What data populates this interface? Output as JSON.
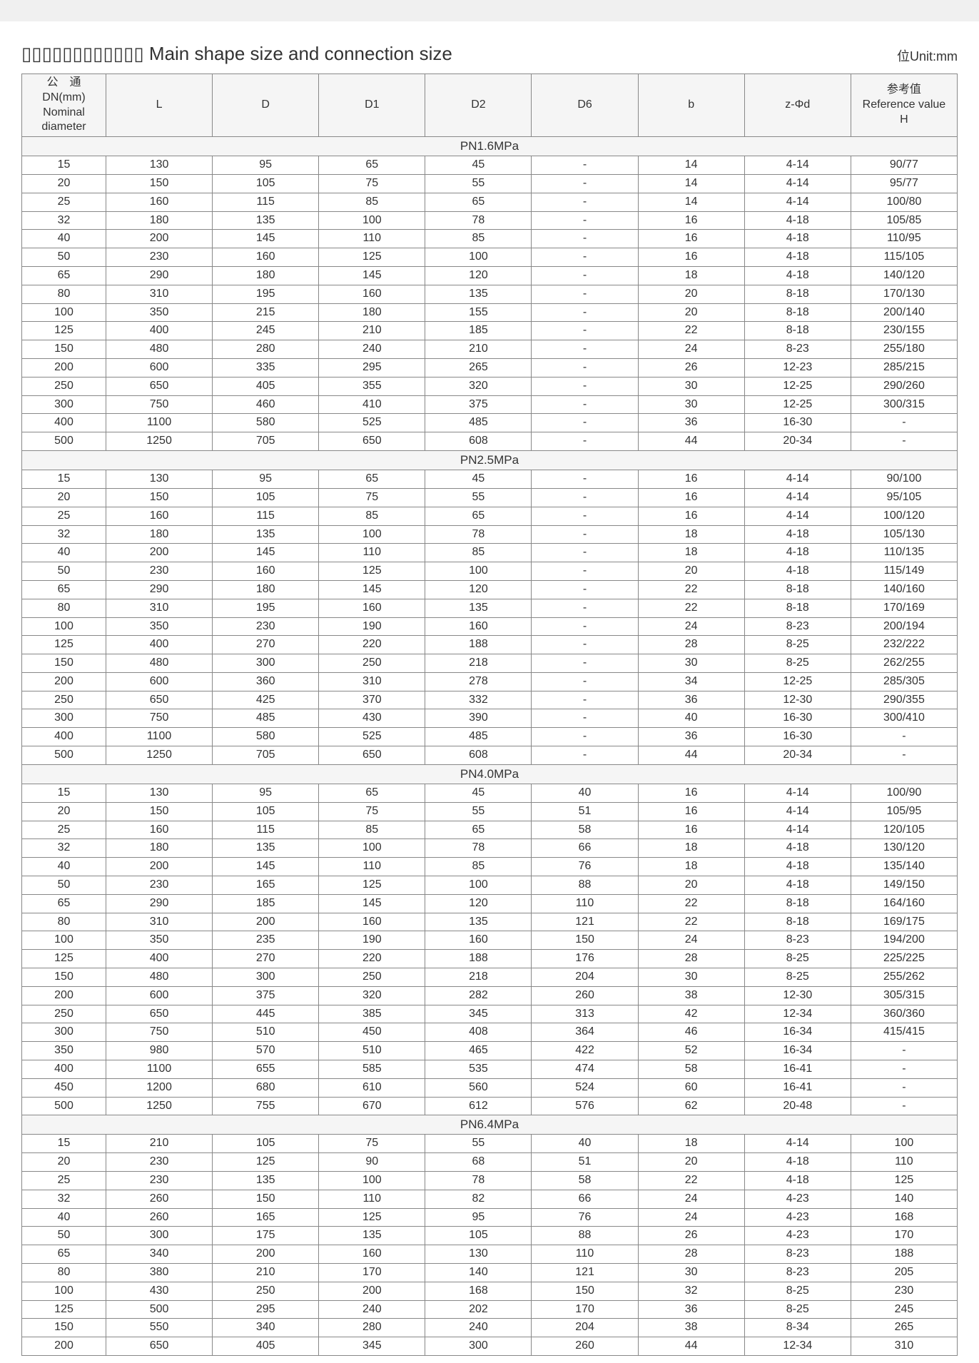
{
  "title": "▯▯▯▯▯▯▯▯▯▯▯▯ Main shape size and connection size",
  "unit_label": "位Unit:mm",
  "columns": [
    "公　通\nDN(mm)\nNominal diameter",
    "L",
    "D",
    "D1",
    "D2",
    "D6",
    "b",
    "z-Φd",
    "参考值\nReference value\nH"
  ],
  "sections": [
    {
      "label": "PN1.6MPa",
      "rows": [
        [
          "15",
          "130",
          "95",
          "65",
          "45",
          "-",
          "14",
          "4-14",
          "90/77"
        ],
        [
          "20",
          "150",
          "105",
          "75",
          "55",
          "-",
          "14",
          "4-14",
          "95/77"
        ],
        [
          "25",
          "160",
          "115",
          "85",
          "65",
          "-",
          "14",
          "4-14",
          "100/80"
        ],
        [
          "32",
          "180",
          "135",
          "100",
          "78",
          "-",
          "16",
          "4-18",
          "105/85"
        ],
        [
          "40",
          "200",
          "145",
          "110",
          "85",
          "-",
          "16",
          "4-18",
          "110/95"
        ],
        [
          "50",
          "230",
          "160",
          "125",
          "100",
          "-",
          "16",
          "4-18",
          "115/105"
        ],
        [
          "65",
          "290",
          "180",
          "145",
          "120",
          "-",
          "18",
          "4-18",
          "140/120"
        ],
        [
          "80",
          "310",
          "195",
          "160",
          "135",
          "-",
          "20",
          "8-18",
          "170/130"
        ],
        [
          "100",
          "350",
          "215",
          "180",
          "155",
          "-",
          "20",
          "8-18",
          "200/140"
        ],
        [
          "125",
          "400",
          "245",
          "210",
          "185",
          "-",
          "22",
          "8-18",
          "230/155"
        ],
        [
          "150",
          "480",
          "280",
          "240",
          "210",
          "-",
          "24",
          "8-23",
          "255/180"
        ],
        [
          "200",
          "600",
          "335",
          "295",
          "265",
          "-",
          "26",
          "12-23",
          "285/215"
        ],
        [
          "250",
          "650",
          "405",
          "355",
          "320",
          "-",
          "30",
          "12-25",
          "290/260"
        ],
        [
          "300",
          "750",
          "460",
          "410",
          "375",
          "-",
          "30",
          "12-25",
          "300/315"
        ],
        [
          "400",
          "1100",
          "580",
          "525",
          "485",
          "-",
          "36",
          "16-30",
          "-"
        ],
        [
          "500",
          "1250",
          "705",
          "650",
          "608",
          "-",
          "44",
          "20-34",
          "-"
        ]
      ]
    },
    {
      "label": "PN2.5MPa",
      "rows": [
        [
          "15",
          "130",
          "95",
          "65",
          "45",
          "-",
          "16",
          "4-14",
          "90/100"
        ],
        [
          "20",
          "150",
          "105",
          "75",
          "55",
          "-",
          "16",
          "4-14",
          "95/105"
        ],
        [
          "25",
          "160",
          "115",
          "85",
          "65",
          "-",
          "16",
          "4-14",
          "100/120"
        ],
        [
          "32",
          "180",
          "135",
          "100",
          "78",
          "-",
          "18",
          "4-18",
          "105/130"
        ],
        [
          "40",
          "200",
          "145",
          "110",
          "85",
          "-",
          "18",
          "4-18",
          "110/135"
        ],
        [
          "50",
          "230",
          "160",
          "125",
          "100",
          "-",
          "20",
          "4-18",
          "115/149"
        ],
        [
          "65",
          "290",
          "180",
          "145",
          "120",
          "-",
          "22",
          "8-18",
          "140/160"
        ],
        [
          "80",
          "310",
          "195",
          "160",
          "135",
          "-",
          "22",
          "8-18",
          "170/169"
        ],
        [
          "100",
          "350",
          "230",
          "190",
          "160",
          "-",
          "24",
          "8-23",
          "200/194"
        ],
        [
          "125",
          "400",
          "270",
          "220",
          "188",
          "-",
          "28",
          "8-25",
          "232/222"
        ],
        [
          "150",
          "480",
          "300",
          "250",
          "218",
          "-",
          "30",
          "8-25",
          "262/255"
        ],
        [
          "200",
          "600",
          "360",
          "310",
          "278",
          "-",
          "34",
          "12-25",
          "285/305"
        ],
        [
          "250",
          "650",
          "425",
          "370",
          "332",
          "-",
          "36",
          "12-30",
          "290/355"
        ],
        [
          "300",
          "750",
          "485",
          "430",
          "390",
          "-",
          "40",
          "16-30",
          "300/410"
        ],
        [
          "400",
          "1100",
          "580",
          "525",
          "485",
          "-",
          "36",
          "16-30",
          "-"
        ],
        [
          "500",
          "1250",
          "705",
          "650",
          "608",
          "-",
          "44",
          "20-34",
          "-"
        ]
      ]
    },
    {
      "label": "PN4.0MPa",
      "rows": [
        [
          "15",
          "130",
          "95",
          "65",
          "45",
          "40",
          "16",
          "4-14",
          "100/90"
        ],
        [
          "20",
          "150",
          "105",
          "75",
          "55",
          "51",
          "16",
          "4-14",
          "105/95"
        ],
        [
          "25",
          "160",
          "115",
          "85",
          "65",
          "58",
          "16",
          "4-14",
          "120/105"
        ],
        [
          "32",
          "180",
          "135",
          "100",
          "78",
          "66",
          "18",
          "4-18",
          "130/120"
        ],
        [
          "40",
          "200",
          "145",
          "110",
          "85",
          "76",
          "18",
          "4-18",
          "135/140"
        ],
        [
          "50",
          "230",
          "165",
          "125",
          "100",
          "88",
          "20",
          "4-18",
          "149/150"
        ],
        [
          "65",
          "290",
          "185",
          "145",
          "120",
          "110",
          "22",
          "8-18",
          "164/160"
        ],
        [
          "80",
          "310",
          "200",
          "160",
          "135",
          "121",
          "22",
          "8-18",
          "169/175"
        ],
        [
          "100",
          "350",
          "235",
          "190",
          "160",
          "150",
          "24",
          "8-23",
          "194/200"
        ],
        [
          "125",
          "400",
          "270",
          "220",
          "188",
          "176",
          "28",
          "8-25",
          "225/225"
        ],
        [
          "150",
          "480",
          "300",
          "250",
          "218",
          "204",
          "30",
          "8-25",
          "255/262"
        ],
        [
          "200",
          "600",
          "375",
          "320",
          "282",
          "260",
          "38",
          "12-30",
          "305/315"
        ],
        [
          "250",
          "650",
          "445",
          "385",
          "345",
          "313",
          "42",
          "12-34",
          "360/360"
        ],
        [
          "300",
          "750",
          "510",
          "450",
          "408",
          "364",
          "46",
          "16-34",
          "415/415"
        ],
        [
          "350",
          "980",
          "570",
          "510",
          "465",
          "422",
          "52",
          "16-34",
          "-"
        ],
        [
          "400",
          "1100",
          "655",
          "585",
          "535",
          "474",
          "58",
          "16-41",
          "-"
        ],
        [
          "450",
          "1200",
          "680",
          "610",
          "560",
          "524",
          "60",
          "16-41",
          "-"
        ],
        [
          "500",
          "1250",
          "755",
          "670",
          "612",
          "576",
          "62",
          "20-48",
          "-"
        ]
      ]
    },
    {
      "label": "PN6.4MPa",
      "rows": [
        [
          "15",
          "210",
          "105",
          "75",
          "55",
          "40",
          "18",
          "4-14",
          "100"
        ],
        [
          "20",
          "230",
          "125",
          "90",
          "68",
          "51",
          "20",
          "4-18",
          "110"
        ],
        [
          "25",
          "230",
          "135",
          "100",
          "78",
          "58",
          "22",
          "4-18",
          "125"
        ],
        [
          "32",
          "260",
          "150",
          "110",
          "82",
          "66",
          "24",
          "4-23",
          "140"
        ],
        [
          "40",
          "260",
          "165",
          "125",
          "95",
          "76",
          "24",
          "4-23",
          "168"
        ],
        [
          "50",
          "300",
          "175",
          "135",
          "105",
          "88",
          "26",
          "4-23",
          "170"
        ],
        [
          "65",
          "340",
          "200",
          "160",
          "130",
          "110",
          "28",
          "8-23",
          "188"
        ],
        [
          "80",
          "380",
          "210",
          "170",
          "140",
          "121",
          "30",
          "8-23",
          "205"
        ],
        [
          "100",
          "430",
          "250",
          "200",
          "168",
          "150",
          "32",
          "8-25",
          "230"
        ],
        [
          "125",
          "500",
          "295",
          "240",
          "202",
          "170",
          "36",
          "8-25",
          "245"
        ],
        [
          "150",
          "550",
          "340",
          "280",
          "240",
          "204",
          "38",
          "8-34",
          "265"
        ],
        [
          "200",
          "650",
          "405",
          "345",
          "300",
          "260",
          "44",
          "12-34",
          "310"
        ]
      ]
    }
  ]
}
